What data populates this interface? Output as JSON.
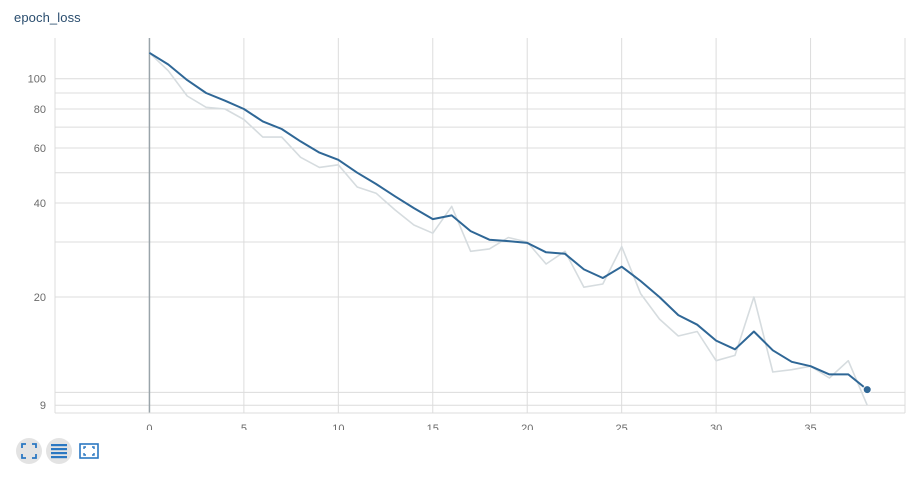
{
  "card": {
    "title": "epoch_loss"
  },
  "colors": {
    "smoothed": "#2f6796",
    "raw": "#d6dcdf",
    "grid": "#dcdcdc",
    "axis": "#9aa4aa",
    "icon": "#2b78c2"
  },
  "toolbar": {
    "icons": [
      "fit-domain-icon",
      "toggle-log-scale-icon",
      "toggle-zoom-icon"
    ]
  },
  "chart_data": {
    "type": "line",
    "title": "epoch_loss",
    "xlabel": "",
    "ylabel": "",
    "y_scale": "log",
    "xlim": [
      -5,
      40
    ],
    "ylim": [
      8.5,
      135
    ],
    "grid": true,
    "x_ticks": [
      0,
      5,
      10,
      15,
      20,
      25,
      30,
      35
    ],
    "x_tick_labels": [
      "0",
      "5",
      "10",
      "15",
      "20",
      "25",
      "30",
      "35"
    ],
    "y_ticks": [
      9,
      20,
      40,
      60,
      80,
      100
    ],
    "y_tick_labels": [
      "9",
      "20",
      "40",
      "60",
      "80",
      "100"
    ],
    "series": [
      {
        "role": "raw",
        "x": [
          0,
          1,
          2,
          3,
          4,
          5,
          6,
          7,
          8,
          9,
          10,
          11,
          12,
          13,
          14,
          15,
          16,
          17,
          18,
          19,
          20,
          21,
          22,
          23,
          24,
          25,
          26,
          27,
          28,
          29,
          30,
          31,
          32,
          33,
          34,
          35,
          36,
          37,
          38
        ],
        "values": [
          121,
          106,
          88,
          81,
          80,
          74,
          65,
          65,
          56,
          52,
          53,
          45,
          43,
          38,
          34,
          32,
          39,
          28,
          28.5,
          31,
          30,
          25.5,
          28,
          21.5,
          22,
          29,
          20.5,
          17,
          15,
          15.5,
          12.5,
          13,
          20,
          11.5,
          11.7,
          12,
          11,
          12.5,
          9
        ]
      },
      {
        "role": "smoothed",
        "x": [
          0,
          1,
          2,
          3,
          4,
          5,
          6,
          7,
          8,
          9,
          10,
          11,
          12,
          13,
          14,
          15,
          16,
          17,
          18,
          19,
          20,
          21,
          22,
          23,
          24,
          25,
          26,
          27,
          28,
          29,
          30,
          31,
          32,
          33,
          34,
          35,
          36,
          37,
          38
        ],
        "values": [
          121,
          111,
          99,
          90,
          85,
          80,
          73,
          69,
          63,
          58,
          55,
          50,
          46,
          42,
          38.5,
          35.5,
          36.5,
          32.5,
          30.5,
          30.2,
          29.8,
          27.8,
          27.5,
          24.5,
          23,
          25,
          22.5,
          20,
          17.5,
          16.3,
          14.5,
          13.6,
          15.5,
          13.5,
          12.4,
          12,
          11.3,
          11.3,
          10.1
        ]
      }
    ]
  }
}
